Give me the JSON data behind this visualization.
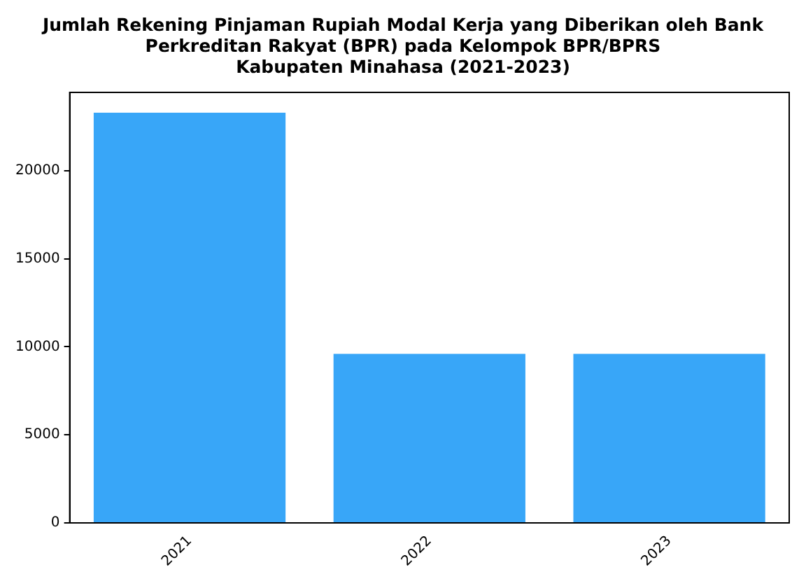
{
  "chart_data": {
    "type": "bar",
    "title": "Jumlah Rekening Pinjaman Rupiah Modal Kerja yang Diberikan oleh Bank\nPerkreditan Rakyat (BPR) pada Kelompok BPR/BPRS\nKabupaten Minahasa (2021-2023)",
    "categories": [
      "2021",
      "2022",
      "2023"
    ],
    "values": [
      23300,
      9600,
      9600
    ],
    "color": "#38a6f8",
    "ylim": [
      0,
      24450
    ],
    "yticks": [
      0,
      5000,
      10000,
      15000,
      20000
    ],
    "grid": false,
    "legend": false
  }
}
